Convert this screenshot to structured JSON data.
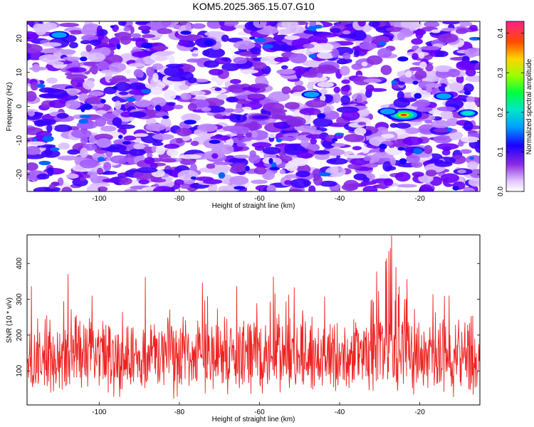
{
  "title": "KOM5.2025.365.15.07.G10",
  "chart_data": [
    {
      "type": "heatmap",
      "xlabel": "Height of straight line (km)",
      "ylabel": "Frequency (Hz)",
      "xlim": [
        -118,
        -5
      ],
      "ylim": [
        -25,
        25
      ],
      "xticks": [
        -100,
        -80,
        -60,
        -40,
        -20
      ],
      "yticks": [
        -20,
        -10,
        0,
        10,
        20
      ],
      "colorbar": {
        "label": "Normalized spectral amplitude",
        "range": [
          0,
          0.43
        ],
        "ticks": [
          "0.0",
          "0.1",
          "0.2",
          "0.3",
          "0.4"
        ]
      },
      "peaks": [
        {
          "x": -24,
          "y": -2.5,
          "value": 0.42
        },
        {
          "x": -8,
          "y": -2,
          "value": 0.18
        },
        {
          "x": -47,
          "y": 3.5,
          "value": 0.15
        },
        {
          "x": -14,
          "y": 3,
          "value": 0.12
        },
        {
          "x": -28,
          "y": -1.5,
          "value": 0.13
        },
        {
          "x": -110,
          "y": 21,
          "value": 0.1
        }
      ]
    },
    {
      "type": "line",
      "xlabel": "Height of straight line (km)",
      "ylabel": "SNR (10 * v/v)",
      "xlim": [
        -118,
        -5
      ],
      "ylim": [
        5,
        480
      ],
      "xticks": [
        -100,
        -80,
        -60,
        -40,
        -20
      ],
      "yticks": [
        100,
        200,
        300,
        400
      ],
      "series": [
        {
          "color": "#ee2222",
          "mean": 140,
          "noise": 110,
          "peak_x": -27,
          "peak_y": 478
        }
      ]
    }
  ]
}
